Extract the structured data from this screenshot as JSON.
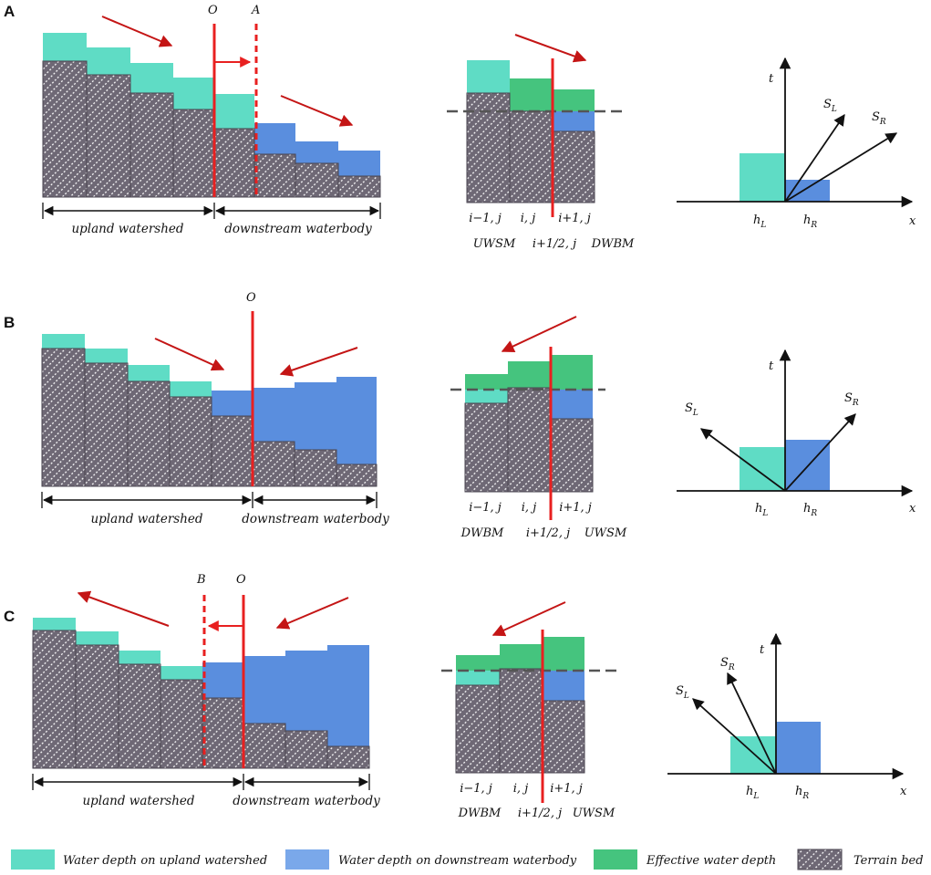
{
  "colors": {
    "upland_water": "#5fdcc5",
    "downstream_water": "#5a8ede",
    "effective_water": "#45c47e",
    "terrain_fill": "#6e6875",
    "terrain_stroke": "#4a4550",
    "interface_red": "#e82020",
    "arrow_red": "#c41515",
    "dashed_gray": "#555555",
    "legend_downstream": "#7aa8ea"
  },
  "panels": [
    {
      "letter": "A",
      "left": {
        "label_O": "O",
        "label_A": "A",
        "range_left": "upland watershed",
        "range_right": "downstream waterbody"
      },
      "middle": {
        "cells": [
          "i−1, j",
          "i, j",
          "i+1, j"
        ],
        "below": [
          "UWSM",
          "i+1/2, j",
          "DWBM"
        ]
      },
      "right": {
        "t": "t",
        "x": "x",
        "SL_main": "S",
        "SL_sub": "L",
        "SR_main": "S",
        "SR_sub": "R",
        "hL_main": "h",
        "hL_sub": "L",
        "hR_main": "h",
        "hR_sub": "R"
      }
    },
    {
      "letter": "B",
      "left": {
        "label_O": "O",
        "range_left": "upland watershed",
        "range_right": "downstream waterbody"
      },
      "middle": {
        "cells": [
          "i−1, j",
          "i, j",
          "i+1, j"
        ],
        "below": [
          "DWBM",
          "i+1/2, j",
          "UWSM"
        ]
      },
      "right": {
        "t": "t",
        "x": "x",
        "SL_main": "S",
        "SL_sub": "L",
        "SR_main": "S",
        "SR_sub": "R",
        "hL_main": "h",
        "hL_sub": "L",
        "hR_main": "h",
        "hR_sub": "R"
      }
    },
    {
      "letter": "C",
      "left": {
        "label_B": "B",
        "label_O": "O",
        "range_left": "upland watershed",
        "range_right": "downstream waterbody"
      },
      "middle": {
        "cells": [
          "i−1, j",
          "i, j",
          "i+1, j"
        ],
        "below": [
          "DWBM",
          "i+1/2, j",
          "UWSM"
        ]
      },
      "right": {
        "t": "t",
        "x": "x",
        "SL_main": "S",
        "SL_sub": "L",
        "SR_main": "S",
        "SR_sub": "R",
        "hL_main": "h",
        "hL_sub": "L",
        "hR_main": "h",
        "hR_sub": "R"
      }
    }
  ],
  "legend": [
    {
      "key": "upland",
      "label": "Water depth on upland watershed"
    },
    {
      "key": "downstream",
      "label": "Water depth on downstream waterbody"
    },
    {
      "key": "effective",
      "label": "Effective water depth"
    },
    {
      "key": "terrain",
      "label": "Terrain bed"
    }
  ]
}
